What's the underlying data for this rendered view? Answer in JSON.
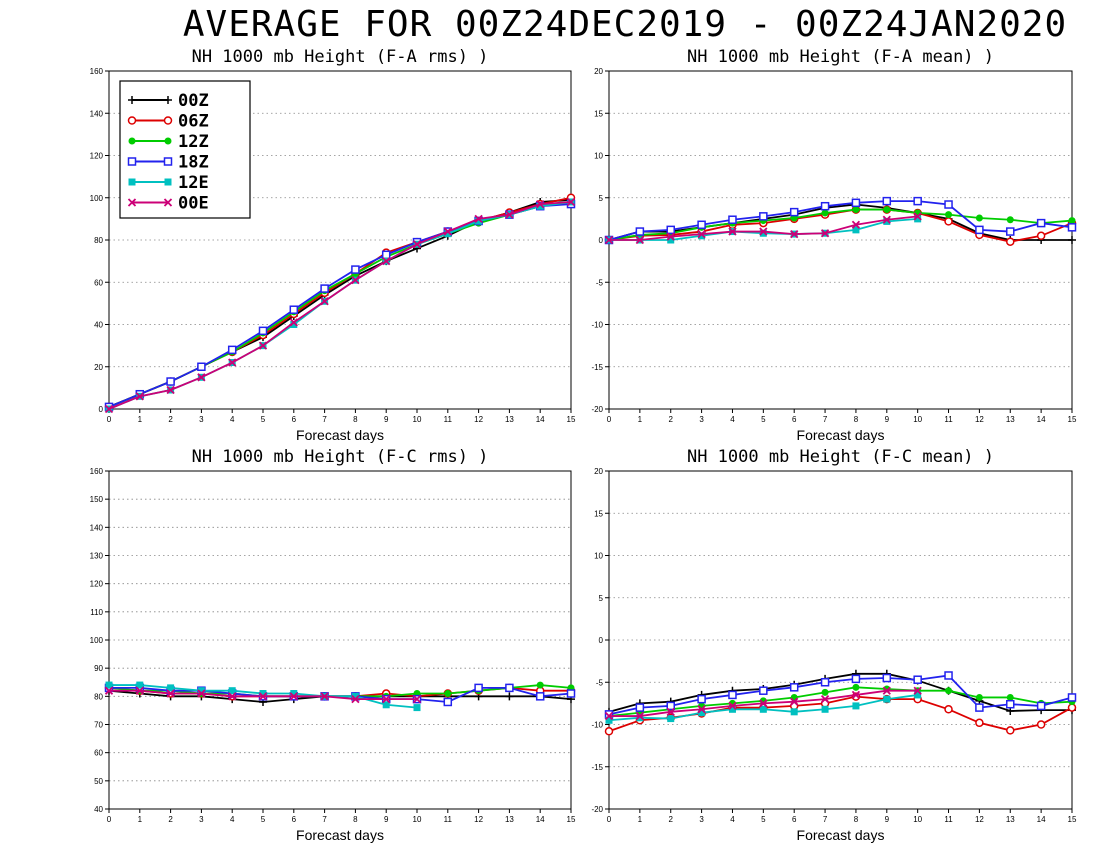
{
  "title": "AVERAGE FOR 00Z24DEC2019 - 00Z24JAN2020",
  "legend": [
    {
      "name": "00Z",
      "color": "#000000",
      "marker": "plus"
    },
    {
      "name": "06Z",
      "color": "#dd0000",
      "marker": "circle"
    },
    {
      "name": "12Z",
      "color": "#00cc00",
      "marker": "dot"
    },
    {
      "name": "18Z",
      "color": "#2222ee",
      "marker": "square"
    },
    {
      "name": "12E",
      "color": "#00c0c0",
      "marker": "fsquare"
    },
    {
      "name": "00E",
      "color": "#cc0077",
      "marker": "cross"
    }
  ],
  "chart_data": [
    {
      "type": "line",
      "title": "NH 1000 mb Height (F-A rms) )",
      "xlabel": "Forecast days",
      "ylabel": "",
      "xlim": [
        0,
        15
      ],
      "ylim": [
        0,
        160
      ],
      "yticks": [
        0,
        20,
        40,
        60,
        80,
        100,
        120,
        140,
        160
      ],
      "x": [
        0,
        1,
        2,
        3,
        4,
        5,
        6,
        7,
        8,
        9,
        10,
        11,
        12,
        13,
        14,
        15
      ],
      "legend": "top-left",
      "series": [
        {
          "name": "00Z",
          "values": [
            1,
            7,
            13,
            20,
            27,
            34,
            44,
            54,
            63,
            70,
            76,
            82,
            89,
            93,
            98,
            99
          ]
        },
        {
          "name": "06Z",
          "values": [
            1,
            7,
            13,
            20,
            27,
            35,
            45,
            55,
            64,
            74,
            79,
            84,
            89,
            93,
            97,
            100
          ]
        },
        {
          "name": "12Z",
          "values": [
            1,
            7,
            13,
            20,
            27,
            36,
            46,
            56,
            64,
            72,
            78,
            83,
            88,
            92,
            96,
            98
          ]
        },
        {
          "name": "18Z",
          "values": [
            1,
            7,
            13,
            20,
            28,
            37,
            47,
            57,
            66,
            73,
            79,
            84,
            89,
            92,
            96,
            97
          ]
        },
        {
          "name": "12E",
          "values": [
            0,
            6,
            9,
            15,
            22,
            30,
            40,
            51,
            61,
            70,
            78,
            83,
            89,
            92,
            96,
            98
          ]
        },
        {
          "name": "00E",
          "values": [
            0,
            6,
            9,
            15,
            22,
            30,
            41,
            51,
            61,
            70,
            78,
            84,
            90,
            92,
            97,
            98
          ]
        }
      ]
    },
    {
      "type": "line",
      "title": "NH 1000 mb Height (F-A mean) )",
      "xlabel": "Forecast days",
      "ylabel": "",
      "xlim": [
        0,
        15
      ],
      "ylim": [
        -20,
        20
      ],
      "yticks": [
        -20,
        -15,
        -10,
        -5,
        0,
        5,
        10,
        15,
        20
      ],
      "x": [
        0,
        1,
        2,
        3,
        4,
        5,
        6,
        7,
        8,
        9,
        10,
        11,
        12,
        13,
        14,
        15
      ],
      "series": [
        {
          "name": "00Z",
          "values": [
            0,
            1,
            1,
            1.5,
            2,
            2.5,
            3,
            3.8,
            4.2,
            3.8,
            3.2,
            2.5,
            0.8,
            0,
            0,
            0
          ]
        },
        {
          "name": "06Z",
          "values": [
            0,
            0.5,
            0.6,
            1,
            1.8,
            2,
            2.5,
            3,
            3.6,
            3.6,
            3.2,
            2.2,
            0.6,
            -0.2,
            0.5,
            2
          ]
        },
        {
          "name": "12Z",
          "values": [
            0,
            0.6,
            0.8,
            1.5,
            2,
            2.3,
            2.6,
            3.2,
            3.6,
            3.6,
            3.2,
            3,
            2.6,
            2.4,
            2,
            2.3
          ]
        },
        {
          "name": "18Z",
          "values": [
            0,
            1,
            1.2,
            1.8,
            2.4,
            2.8,
            3.3,
            4,
            4.4,
            4.6,
            4.6,
            4.2,
            1.2,
            1,
            2,
            1.5
          ]
        },
        {
          "name": "12E",
          "values": [
            0,
            0,
            0,
            0.5,
            1,
            0.8,
            0.7,
            0.8,
            1.2,
            2.2,
            2.5,
            null,
            null,
            null,
            null,
            null
          ]
        },
        {
          "name": "00E",
          "values": [
            0,
            0,
            0.4,
            0.7,
            1,
            1,
            0.7,
            0.8,
            1.8,
            2.4,
            2.8,
            null,
            null,
            null,
            null,
            null
          ]
        }
      ]
    },
    {
      "type": "line",
      "title": "NH 1000 mb Height (F-C rms) )",
      "xlabel": "Forecast days",
      "ylabel": "",
      "xlim": [
        0,
        15
      ],
      "ylim": [
        40,
        160
      ],
      "yticks": [
        40,
        50,
        60,
        70,
        80,
        90,
        100,
        110,
        120,
        130,
        140,
        150,
        160
      ],
      "x": [
        0,
        1,
        2,
        3,
        4,
        5,
        6,
        7,
        8,
        9,
        10,
        11,
        12,
        13,
        14,
        15
      ],
      "series": [
        {
          "name": "00Z",
          "values": [
            82,
            81,
            80,
            80,
            79,
            78,
            79,
            80,
            80,
            80,
            80,
            80,
            80,
            80,
            80,
            79
          ]
        },
        {
          "name": "06Z",
          "values": [
            83,
            82,
            81,
            81,
            80,
            80,
            80,
            80,
            80,
            81,
            80,
            81,
            82,
            83,
            82,
            82
          ]
        },
        {
          "name": "12Z",
          "values": [
            83,
            82,
            82,
            81,
            81,
            80,
            80,
            80,
            80,
            80,
            81,
            81,
            82,
            83,
            84,
            83
          ]
        },
        {
          "name": "18Z",
          "values": [
            83,
            83,
            82,
            82,
            81,
            80,
            80,
            80,
            80,
            79,
            79,
            78,
            83,
            83,
            80,
            81
          ]
        },
        {
          "name": "12E",
          "values": [
            84,
            84,
            83,
            82,
            82,
            81,
            81,
            80,
            80,
            77,
            76,
            null,
            null,
            null,
            null,
            null
          ]
        },
        {
          "name": "00E",
          "values": [
            82,
            82,
            81,
            81,
            80,
            80,
            80,
            80,
            79,
            79,
            79,
            null,
            null,
            null,
            null,
            null
          ]
        }
      ]
    },
    {
      "type": "line",
      "title": "NH 1000 mb Height (F-C mean) )",
      "xlabel": "Forecast days",
      "ylabel": "",
      "xlim": [
        0,
        15
      ],
      "ylim": [
        -20,
        20
      ],
      "yticks": [
        -20,
        -15,
        -10,
        -5,
        0,
        5,
        10,
        15,
        20
      ],
      "x": [
        0,
        1,
        2,
        3,
        4,
        5,
        6,
        7,
        8,
        9,
        10,
        11,
        12,
        13,
        14,
        15
      ],
      "series": [
        {
          "name": "00Z",
          "values": [
            -8.5,
            -7.5,
            -7.3,
            -6.5,
            -6,
            -5.8,
            -5.3,
            -4.6,
            -4,
            -4,
            -4.8,
            -6,
            -7.2,
            -8.4,
            -8.3,
            -8.3
          ]
        },
        {
          "name": "06Z",
          "values": [
            -10.8,
            -9.5,
            -9.2,
            -8.7,
            -8,
            -8,
            -7.8,
            -7.5,
            -6.7,
            -7,
            -7,
            -8.2,
            -9.8,
            -10.7,
            -10,
            -8
          ]
        },
        {
          "name": "12Z",
          "values": [
            -9,
            -8.6,
            -8.2,
            -7.8,
            -7.5,
            -7.2,
            -6.8,
            -6.2,
            -5.6,
            -5.8,
            -6,
            -6,
            -6.8,
            -6.8,
            -7.5,
            -7.3
          ]
        },
        {
          "name": "18Z",
          "values": [
            -8.8,
            -8,
            -7.8,
            -7,
            -6.5,
            -6,
            -5.6,
            -5,
            -4.6,
            -4.5,
            -4.7,
            -4.2,
            -8,
            -7.6,
            -7.8,
            -6.8
          ]
        },
        {
          "name": "12E",
          "values": [
            -9.5,
            -9.2,
            -9.3,
            -8.6,
            -8.2,
            -8.2,
            -8.5,
            -8.2,
            -7.8,
            -7,
            -6.5,
            null,
            null,
            null,
            null,
            null
          ]
        },
        {
          "name": "00E",
          "values": [
            -9,
            -9,
            -8.5,
            -8.2,
            -7.8,
            -7.5,
            -7.3,
            -7,
            -6.5,
            -6,
            -6,
            null,
            null,
            null,
            null,
            null
          ]
        }
      ]
    }
  ]
}
